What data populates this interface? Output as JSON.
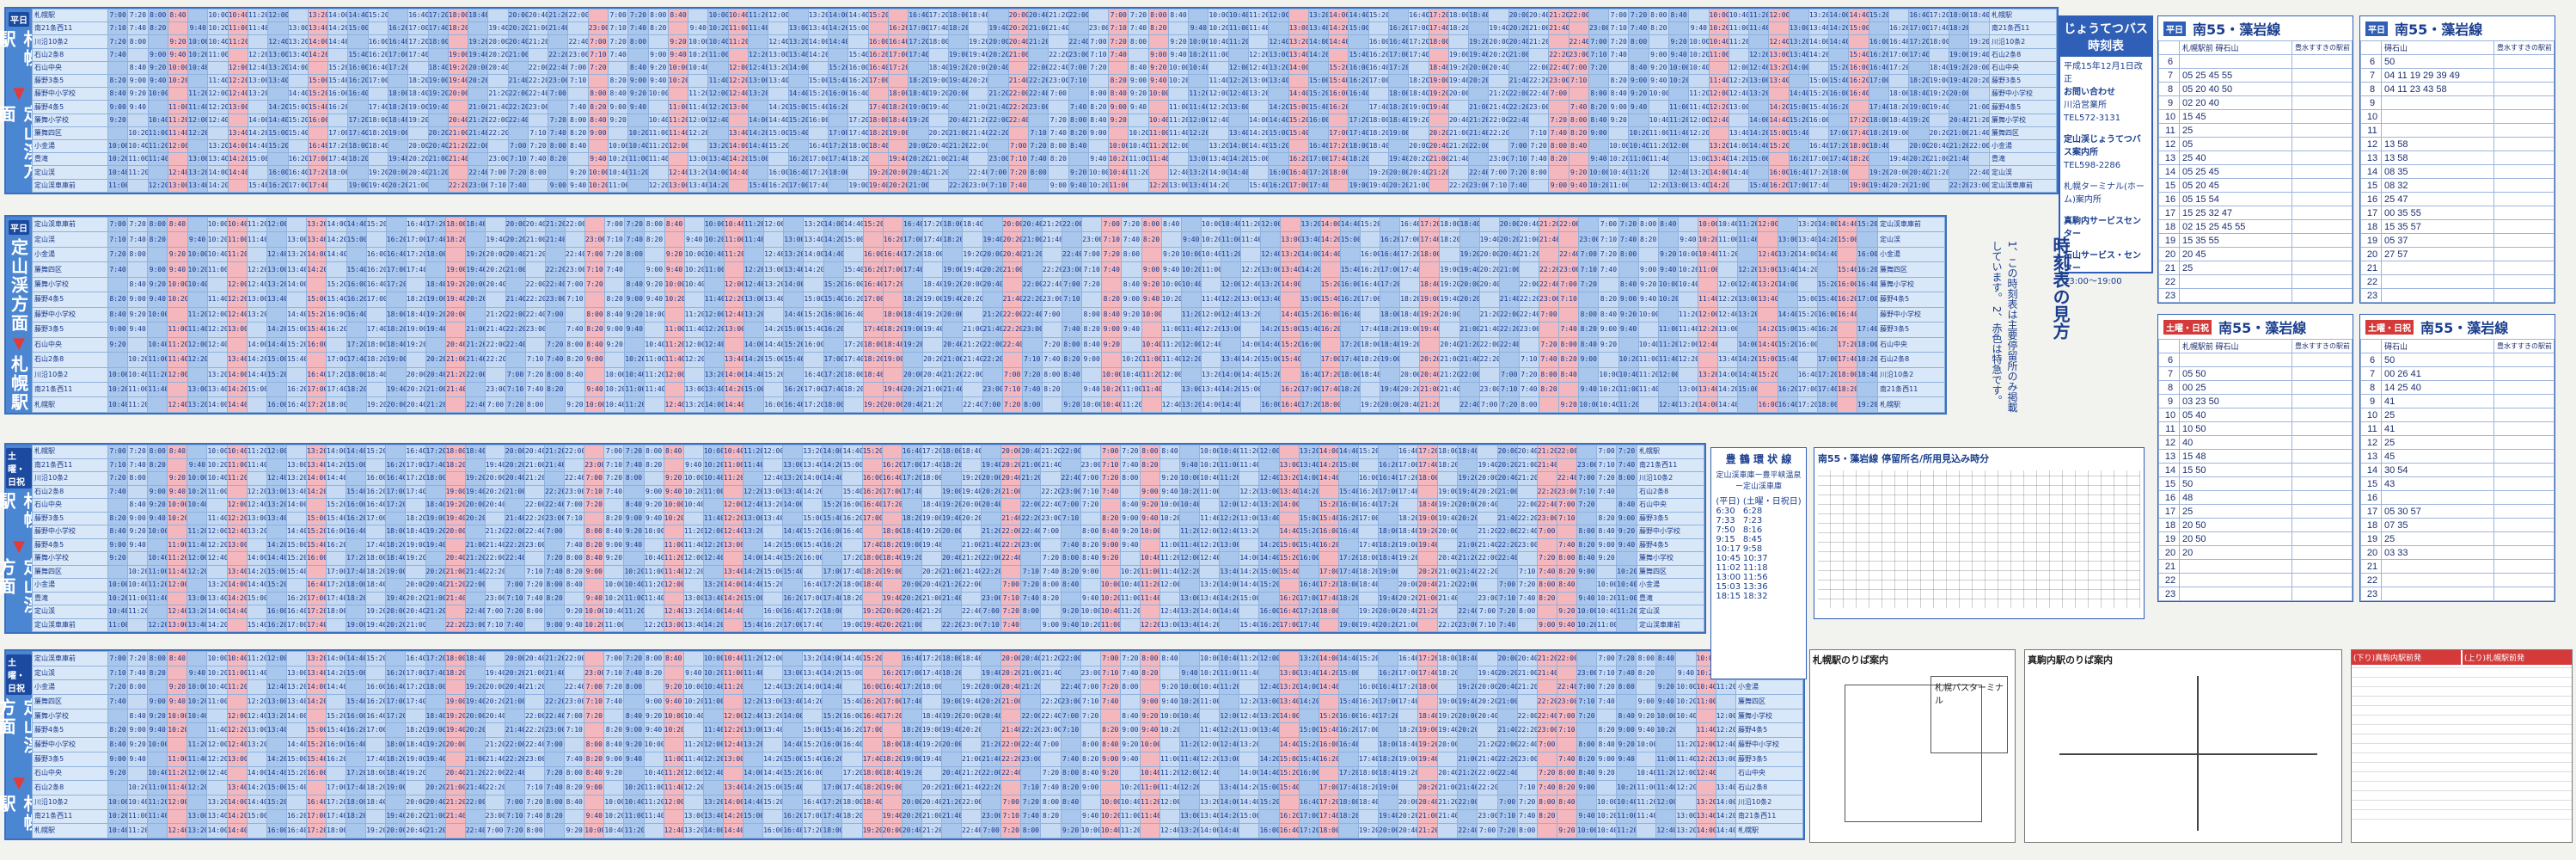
{
  "panels": [
    {
      "day": "平日",
      "from": "札幌駅",
      "to": "定山渓方面"
    },
    {
      "day": "平日",
      "from": "定山渓方面",
      "to": "札幌駅"
    },
    {
      "day": "土曜・日祝",
      "from": "札幌駅",
      "to": "定山渓方面"
    },
    {
      "day": "土曜・日祝",
      "from": "定山渓方面",
      "to": "札幌駅"
    }
  ],
  "stops_outbound": [
    "札幌駅",
    "南21条西11",
    "川沿10条2",
    "石山2条8",
    "石山中央",
    "藤野3条5",
    "藤野中小学校",
    "藤野4条5",
    "簾舞小学校",
    "簾舞四区",
    "小金湯",
    "豊滝",
    "定山渓",
    "定山渓車庫前"
  ],
  "stops_inbound": [
    "定山渓車庫前",
    "定山渓",
    "小金湯",
    "簾舞四区",
    "簾舞小学校",
    "藤野4条5",
    "藤野中小学校",
    "藤野3条5",
    "石山中央",
    "石山2条8",
    "川沿10条2",
    "南21条西11",
    "札幌駅"
  ],
  "sample_times": [
    "7:00",
    "7:10",
    "7:20",
    "7:40",
    "8:00",
    "8:20",
    "8:40",
    "9:00",
    "9:20",
    "9:40",
    "10:00",
    "10:20",
    "10:40",
    "11:00",
    "11:20",
    "11:40",
    "12:00",
    "12:20",
    "12:40",
    "13:00",
    "13:20",
    "13:40",
    "14:00",
    "14:20",
    "14:40",
    "15:00",
    "15:20",
    "15:40",
    "16:00",
    "16:20",
    "16:40",
    "17:00",
    "17:20",
    "17:40",
    "18:00",
    "18:20",
    "18:40",
    "19:00",
    "19:20",
    "19:40",
    "20:00",
    "20:20",
    "20:40",
    "21:00",
    "21:20",
    "21:40",
    "22:00",
    "22:20",
    "22:40",
    "23:00"
  ],
  "company": {
    "title": "じょうてつバス時刻表",
    "revised": "平成15年12月1日改正",
    "inquiry": "お問い合わせ",
    "office": "川沿営業所",
    "office_tel": "TEL572-3131",
    "teizankei": "定山渓じょうてつバス案内所",
    "teizankei_tel": "TEL598-2286",
    "terminal": "札幌ターミナル(ホーム)案内所",
    "service1": "真駒内サービスセンター",
    "service2": "石山サービス・センター",
    "hours": "13:00〜19:00"
  },
  "howto": {
    "title": "時刻表の見方",
    "body": "1、この時刻表は主要停留所のみ掲載しています。 2、赤色は特急です。"
  },
  "routes": [
    {
      "name": "南55・藻岩線",
      "tag": "平日",
      "tag_class": "",
      "col1": "札幌駅前",
      "col2": "碍石山",
      "col3": "豊水すすきの駅前",
      "rows": [
        [
          "6",
          ""
        ],
        [
          "7",
          "05 25 45 55"
        ],
        [
          "8",
          "05 20 40 50"
        ],
        [
          "9",
          "02 20 40"
        ],
        [
          "10",
          "15 45"
        ],
        [
          "11",
          "25"
        ],
        [
          "12",
          "05"
        ],
        [
          "13",
          "25 40"
        ],
        [
          "14",
          "05 25 45"
        ],
        [
          "15",
          "05 20 45"
        ],
        [
          "16",
          "05 15 54"
        ],
        [
          "17",
          "15 25 32 47"
        ],
        [
          "18",
          "02 15 25 45 55"
        ],
        [
          "19",
          "15 35 55"
        ],
        [
          "20",
          "20 45"
        ],
        [
          "21",
          "25"
        ],
        [
          "22",
          ""
        ],
        [
          "23",
          ""
        ]
      ]
    },
    {
      "name": "南55・藻岩線",
      "tag": "平日",
      "tag_class": "",
      "col1": "碍石山",
      "col2": "",
      "col3": "豊水すすきの駅前",
      "rows": [
        [
          "6",
          "50"
        ],
        [
          "7",
          "04 11 19 29 39 49"
        ],
        [
          "8",
          "04 11 23 43 58"
        ],
        [
          "9",
          ""
        ],
        [
          "10",
          ""
        ],
        [
          "11",
          ""
        ],
        [
          "12",
          "13 58"
        ],
        [
          "13",
          "13 58"
        ],
        [
          "14",
          "08 35"
        ],
        [
          "15",
          "08 32"
        ],
        [
          "16",
          "25 47"
        ],
        [
          "17",
          "00 35 55"
        ],
        [
          "18",
          "15 35 57"
        ],
        [
          "19",
          "05 37"
        ],
        [
          "20",
          "27 57"
        ],
        [
          "21",
          ""
        ],
        [
          "22",
          ""
        ],
        [
          "23",
          ""
        ]
      ]
    },
    {
      "name": "南55・藻岩線",
      "tag": "土曜・日祝",
      "tag_class": "red",
      "col1": "札幌駅前",
      "col2": "碍石山",
      "col3": "豊水すすきの駅前",
      "rows": [
        [
          "6",
          ""
        ],
        [
          "7",
          "05 50"
        ],
        [
          "8",
          "00 25"
        ],
        [
          "9",
          "03 23 50"
        ],
        [
          "10",
          "05 40"
        ],
        [
          "11",
          "10 50"
        ],
        [
          "12",
          "40"
        ],
        [
          "13",
          "15 48"
        ],
        [
          "14",
          "15 50"
        ],
        [
          "15",
          "50"
        ],
        [
          "16",
          "48"
        ],
        [
          "17",
          "25"
        ],
        [
          "18",
          "20 50"
        ],
        [
          "19",
          "20 50"
        ],
        [
          "20",
          "20"
        ],
        [
          "21",
          ""
        ],
        [
          "22",
          ""
        ],
        [
          "23",
          ""
        ]
      ]
    },
    {
      "name": "南55・藻岩線",
      "tag": "土曜・日祝",
      "tag_class": "red",
      "col1": "碍石山",
      "col2": "",
      "col3": "豊水すすきの駅前",
      "rows": [
        [
          "6",
          "50"
        ],
        [
          "7",
          "00 26 41"
        ],
        [
          "8",
          "14 25 40"
        ],
        [
          "9",
          "41"
        ],
        [
          "10",
          "25"
        ],
        [
          "11",
          "41"
        ],
        [
          "12",
          "25"
        ],
        [
          "13",
          "45"
        ],
        [
          "14",
          "30 54"
        ],
        [
          "15",
          "43"
        ],
        [
          "16",
          ""
        ],
        [
          "17",
          "05 30 57"
        ],
        [
          "18",
          "07 35"
        ],
        [
          "19",
          "25"
        ],
        [
          "20",
          "03 33"
        ],
        [
          "21",
          ""
        ],
        [
          "22",
          ""
        ],
        [
          "23",
          ""
        ]
      ]
    }
  ],
  "middle_note": {
    "title": "豊 鶴 環 状 線",
    "sub": "定山渓車庫ー豊平峡温泉ー定山渓車庫",
    "head_weekday": "(平日)",
    "head_holiday": "(土曜・日祝日)",
    "times_weekday": [
      "6:30",
      "7:33",
      "7:50",
      "9:15",
      "10:17",
      "10:45",
      "11:02",
      "13:00",
      "15:03",
      "18:15"
    ],
    "times_holiday": [
      "6:28",
      "7:23",
      "8:16",
      "8:45",
      "9:58",
      "10:37",
      "11:18",
      "11:56",
      "13:36",
      "18:32"
    ],
    "caption": "南55・藻岩線 停留所名/所用見込み時分"
  },
  "maps": {
    "sapporo": "札幌駅のりば案内",
    "makomanai": "真駒内駅のりば案内",
    "terminal": "札幌バスターミナル"
  },
  "bottom_right": {
    "title1": "(下り)真駒内駅前発",
    "title2": "(上り)札幌駅前発"
  }
}
